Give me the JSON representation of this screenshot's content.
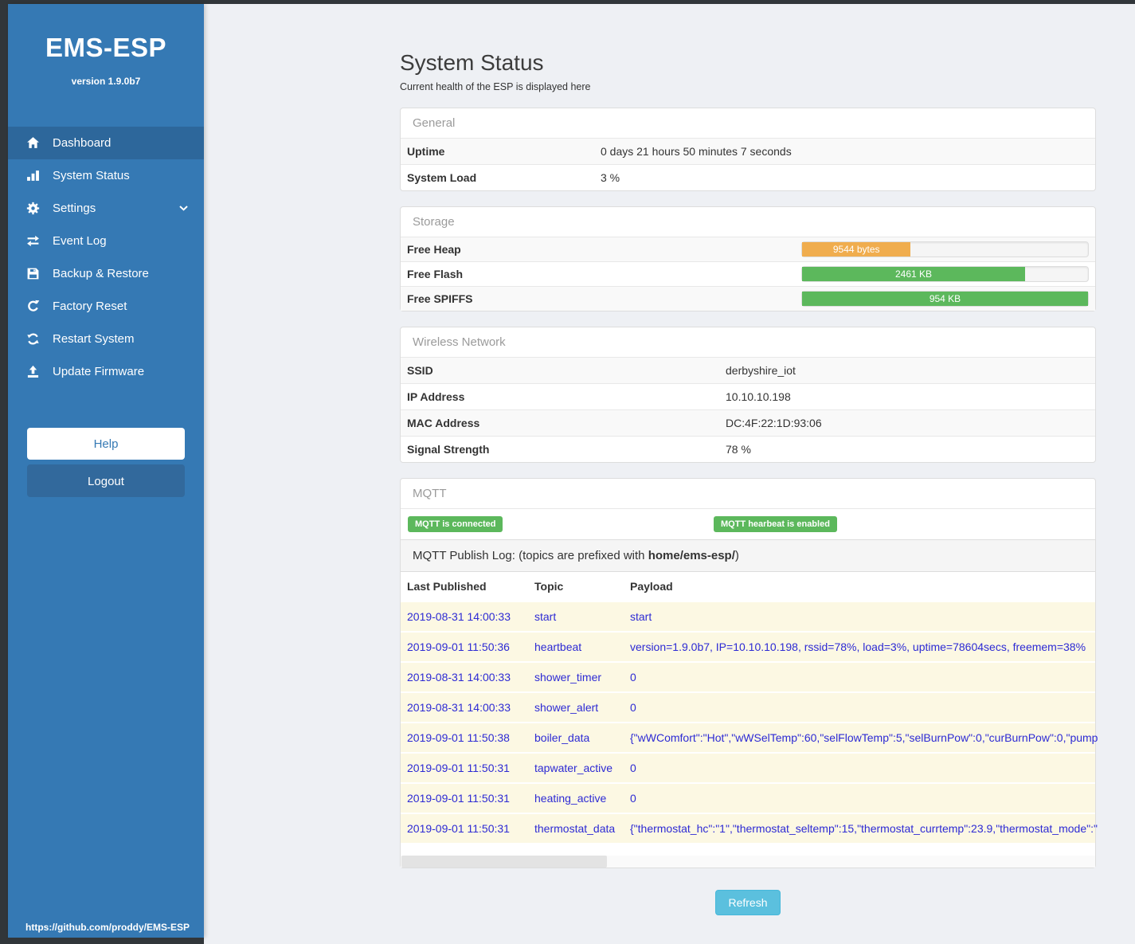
{
  "sidebar": {
    "brand": "EMS-ESP",
    "version": "version 1.9.0b7",
    "items": [
      {
        "label": "Dashboard",
        "icon": "home-icon",
        "active": true
      },
      {
        "label": "System Status",
        "icon": "system-status-icon",
        "active": false
      },
      {
        "label": "Settings",
        "icon": "gear-icon",
        "active": false,
        "chevron": true
      },
      {
        "label": "Event Log",
        "icon": "exchange-icon",
        "active": false
      },
      {
        "label": "Backup & Restore",
        "icon": "save-icon",
        "active": false
      },
      {
        "label": "Factory Reset",
        "icon": "rotate-icon",
        "active": false
      },
      {
        "label": "Restart System",
        "icon": "refresh-icon",
        "active": false
      },
      {
        "label": "Update Firmware",
        "icon": "upload-icon",
        "active": false
      }
    ],
    "help_label": "Help",
    "logout_label": "Logout",
    "footer_link": "https://github.com/proddy/EMS-ESP"
  },
  "page": {
    "title": "System Status",
    "subtitle": "Current health of the ESP is displayed here",
    "refresh_label": "Refresh"
  },
  "colors": {
    "sidebar_blue": "#3579b4",
    "active_blue": "#2d679b",
    "success_green": "#5cb85c",
    "warning_orange": "#f0ad4e",
    "info_blue": "#5bc0de",
    "log_link_blue": "#2d2ad4",
    "log_row_bg": "#fcf8e3"
  },
  "panels": {
    "general": {
      "title": "General",
      "rows": [
        {
          "label": "Uptime",
          "value": "0 days 21 hours 50 minutes 7 seconds"
        },
        {
          "label": "System Load",
          "value": "3 %"
        }
      ]
    },
    "storage": {
      "title": "Storage",
      "bars": [
        {
          "label": "Free Heap",
          "value": "9544 bytes",
          "percent": 38,
          "color": "#f0ad4e"
        },
        {
          "label": "Free Flash",
          "value": "2461 KB",
          "percent": 78,
          "color": "#5cb85c"
        },
        {
          "label": "Free SPIFFS",
          "value": "954 KB",
          "percent": 100,
          "color": "#5cb85c"
        }
      ]
    },
    "wireless": {
      "title": "Wireless Network",
      "rows": [
        {
          "label": "SSID",
          "value": "derbyshire_iot"
        },
        {
          "label": "IP Address",
          "value": "10.10.10.198"
        },
        {
          "label": "MAC Address",
          "value": "DC:4F:22:1D:93:06"
        },
        {
          "label": "Signal Strength",
          "value": "78 %"
        }
      ]
    },
    "mqtt": {
      "title": "MQTT",
      "badges": [
        "MQTT is connected",
        "MQTT hearbeat is enabled"
      ],
      "log_title_prefix": "MQTT Publish Log: (topics are prefixed with ",
      "log_title_bold": "home/ems-esp/",
      "log_title_suffix": ")",
      "columns": [
        "Last Published",
        "Topic",
        "Payload"
      ],
      "rows": [
        {
          "time": "2019-08-31 14:00:33",
          "topic": "start",
          "payload": "start"
        },
        {
          "time": "2019-09-01 11:50:36",
          "topic": "heartbeat",
          "payload": "version=1.9.0b7, IP=10.10.10.198, rssid=78%, load=3%, uptime=78604secs, freemem=38%"
        },
        {
          "time": "2019-08-31 14:00:33",
          "topic": "shower_timer",
          "payload": "0"
        },
        {
          "time": "2019-08-31 14:00:33",
          "topic": "shower_alert",
          "payload": "0"
        },
        {
          "time": "2019-09-01 11:50:38",
          "topic": "boiler_data",
          "payload": "{\"wWComfort\":\"Hot\",\"wWSelTemp\":60,\"selFlowTemp\":5,\"selBurnPow\":0,\"curBurnPow\":0,\"pump"
        },
        {
          "time": "2019-09-01 11:50:31",
          "topic": "tapwater_active",
          "payload": "0"
        },
        {
          "time": "2019-09-01 11:50:31",
          "topic": "heating_active",
          "payload": "0"
        },
        {
          "time": "2019-09-01 11:50:31",
          "topic": "thermostat_data",
          "payload": "{\"thermostat_hc\":\"1\",\"thermostat_seltemp\":15,\"thermostat_currtemp\":23.9,\"thermostat_mode\":\""
        }
      ]
    }
  }
}
